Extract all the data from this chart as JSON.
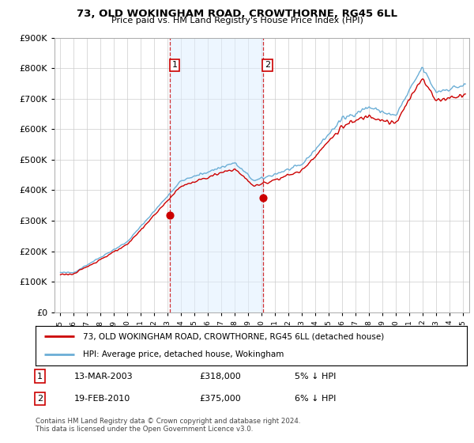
{
  "title": "73, OLD WOKINGHAM ROAD, CROWTHORNE, RG45 6LL",
  "subtitle": "Price paid vs. HM Land Registry's House Price Index (HPI)",
  "legend_line1": "73, OLD WOKINGHAM ROAD, CROWTHORNE, RG45 6LL (detached house)",
  "legend_line2": "HPI: Average price, detached house, Wokingham",
  "footnote": "Contains HM Land Registry data © Crown copyright and database right 2024.\nThis data is licensed under the Open Government Licence v3.0.",
  "transaction1_date": "13-MAR-2003",
  "transaction1_price": "£318,000",
  "transaction1_hpi": "5% ↓ HPI",
  "transaction2_date": "19-FEB-2010",
  "transaction2_price": "£375,000",
  "transaction2_hpi": "6% ↓ HPI",
  "hpi_line_color": "#6baed6",
  "price_color": "#cc0000",
  "shade_color": "#ddeeff",
  "vline_color": "#cc0000",
  "background_color": "#ffffff",
  "ylim": [
    0,
    900000
  ],
  "yticks": [
    0,
    100000,
    200000,
    300000,
    400000,
    500000,
    600000,
    700000,
    800000,
    900000
  ],
  "sale1_year": 2003.19,
  "sale1_price": 318000,
  "sale2_year": 2010.12,
  "sale2_price": 375000,
  "xlim_left": 1994.6,
  "xlim_right": 2025.5
}
